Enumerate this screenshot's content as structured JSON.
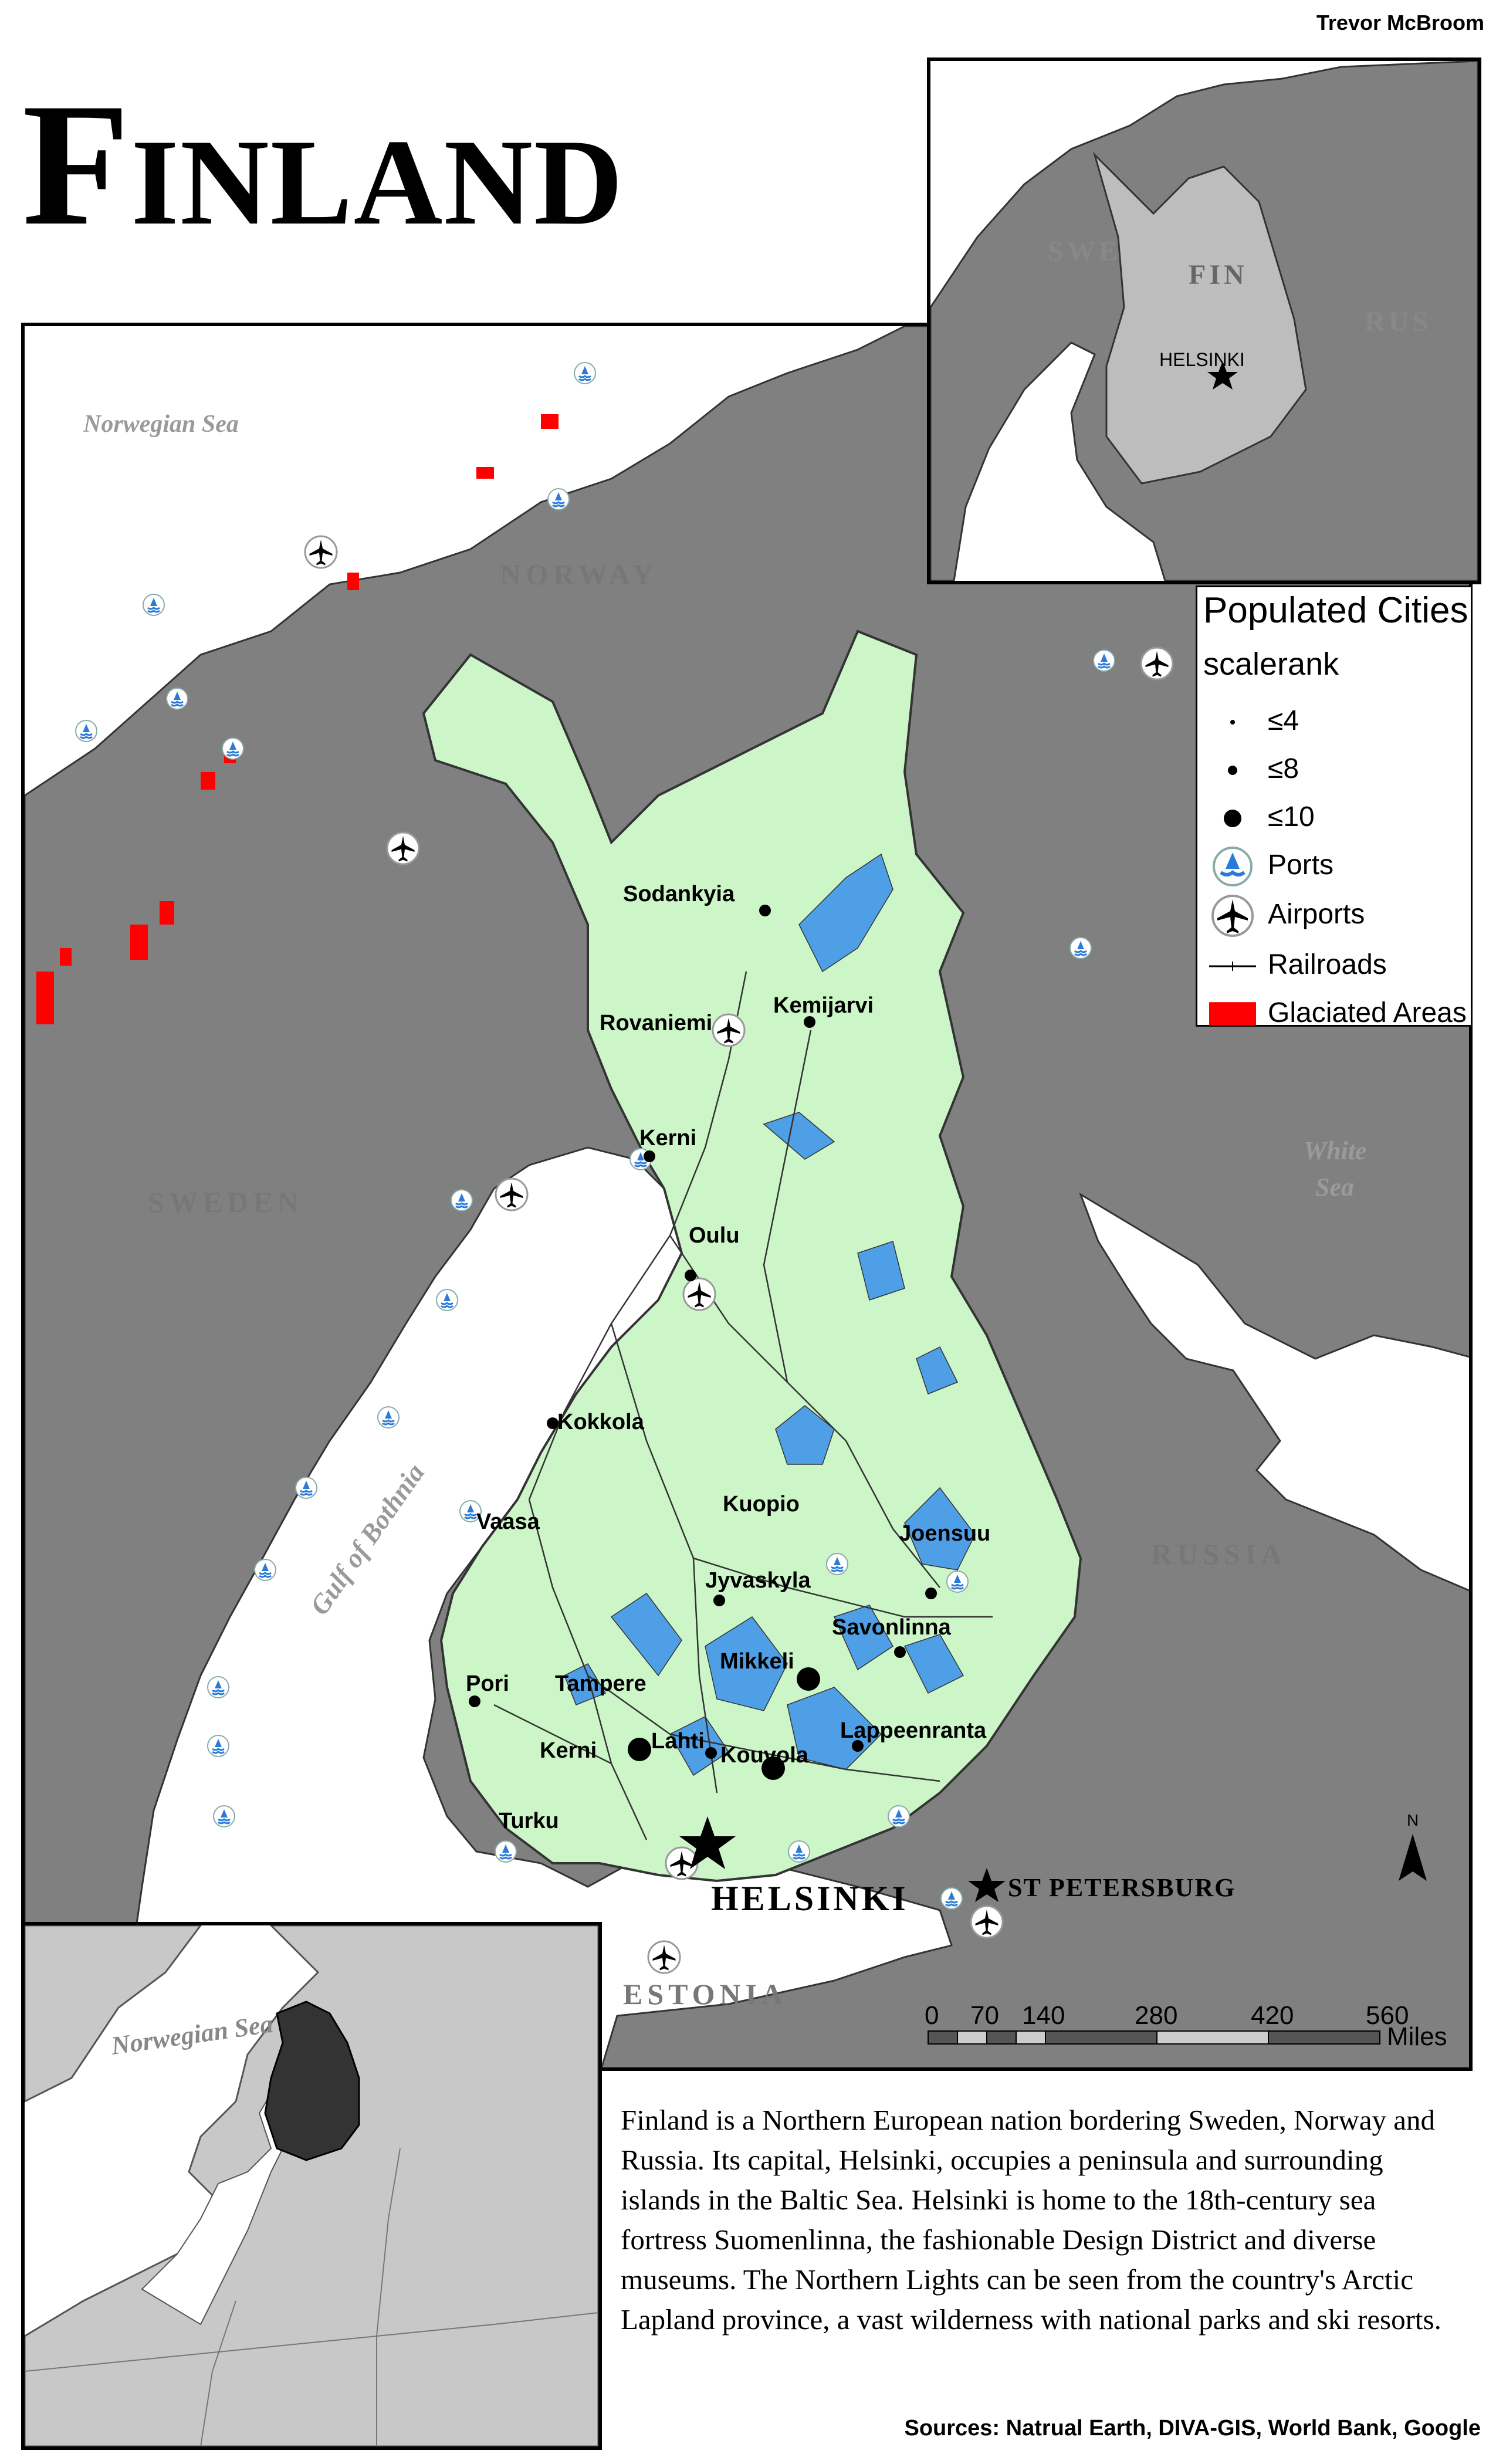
{
  "author": "Trevor McBroom",
  "title": "Finland",
  "colors": {
    "land_other": "#808080",
    "finland_land": "#ccf5c8",
    "lakes": "#4f9fe6",
    "sea": "#ffffff",
    "glaciated": "#ff0000",
    "inset_finland": "#bdbdbd",
    "locator_finland": "#333333",
    "locator_land": "#c8c8c8"
  },
  "main_map": {
    "labels": {
      "norwegian_sea": "Norwegian Sea",
      "norway": "NORWAY",
      "sweden": "SWEDEN",
      "russia": "RUSSIA",
      "white_sea": [
        "White",
        "Sea"
      ],
      "gulf_of_bothnia": "Gulf of Bothnia",
      "estonia": "ESTONIA",
      "helsinki": "HELSINKI",
      "st_petersburg": "ST PETERSBURG"
    },
    "cities": [
      {
        "name": "Sodankyia",
        "scalerank": "<=8"
      },
      {
        "name": "Kemijarvi",
        "scalerank": "<=8"
      },
      {
        "name": "Rovaniemi",
        "scalerank": "<=8"
      },
      {
        "name": "Kerni",
        "scalerank": "<=8"
      },
      {
        "name": "Oulu",
        "scalerank": "<=8"
      },
      {
        "name": "Kokkola",
        "scalerank": "<=8"
      },
      {
        "name": "Vaasa",
        "scalerank": "<=8"
      },
      {
        "name": "Kuopio",
        "scalerank": "<=8"
      },
      {
        "name": "Joensuu",
        "scalerank": "<=8"
      },
      {
        "name": "Jyvaskyla",
        "scalerank": "<=8"
      },
      {
        "name": "Savonlinna",
        "scalerank": "<=8"
      },
      {
        "name": "Mikkeli",
        "scalerank": "<=10"
      },
      {
        "name": "Pori",
        "scalerank": "<=8"
      },
      {
        "name": "Tampere",
        "scalerank": "<=8"
      },
      {
        "name": "Lappeenranta",
        "scalerank": "<=8"
      },
      {
        "name": "Kerni",
        "scalerank": "<=10"
      },
      {
        "name": "Lahti",
        "scalerank": "<=8"
      },
      {
        "name": "Kouvola",
        "scalerank": "<=10"
      },
      {
        "name": "Turku",
        "scalerank": "<=8"
      }
    ],
    "north_arrow": "N",
    "scale_bar": {
      "ticks": [
        "0",
        "70",
        "140",
        "280",
        "420",
        "560"
      ],
      "unit": "Miles"
    }
  },
  "inset_top": {
    "labels": {
      "swe": "SWE",
      "fin": "FIN",
      "rus": "RUS",
      "helsinki": "HELSINKI"
    }
  },
  "inset_bottom": {
    "labels": {
      "norwegian_sea": "Norwegian Sea"
    }
  },
  "legend": {
    "title": "Populated Cities",
    "subtitle": "scalerank",
    "items": [
      {
        "label": "≤4",
        "symbol": "dot-small-icon"
      },
      {
        "label": "≤8",
        "symbol": "dot-medium-icon"
      },
      {
        "label": "≤10",
        "symbol": "dot-large-icon"
      },
      {
        "label": "Ports",
        "symbol": "port-icon"
      },
      {
        "label": "Airports",
        "symbol": "airport-icon"
      },
      {
        "label": "Railroads",
        "symbol": "railroad-icon"
      },
      {
        "label": "Glaciated Areas",
        "symbol": "glacier-swatch"
      }
    ]
  },
  "description": "Finland is a Northern European nation bordering Sweden, Norway and Russia. Its capital, Helsinki, occupies a peninsula and surrounding islands in the Baltic Sea. Helsinki is home to the 18th-century sea fortress Suomenlinna, the fashionable Design District and diverse museums. The Northern Lights can be seen from the country's Arctic Lapland province, a vast wilderness with national parks and ski resorts.",
  "sources": "Sources: Natrual Earth, DIVA-GIS, World Bank, Google"
}
